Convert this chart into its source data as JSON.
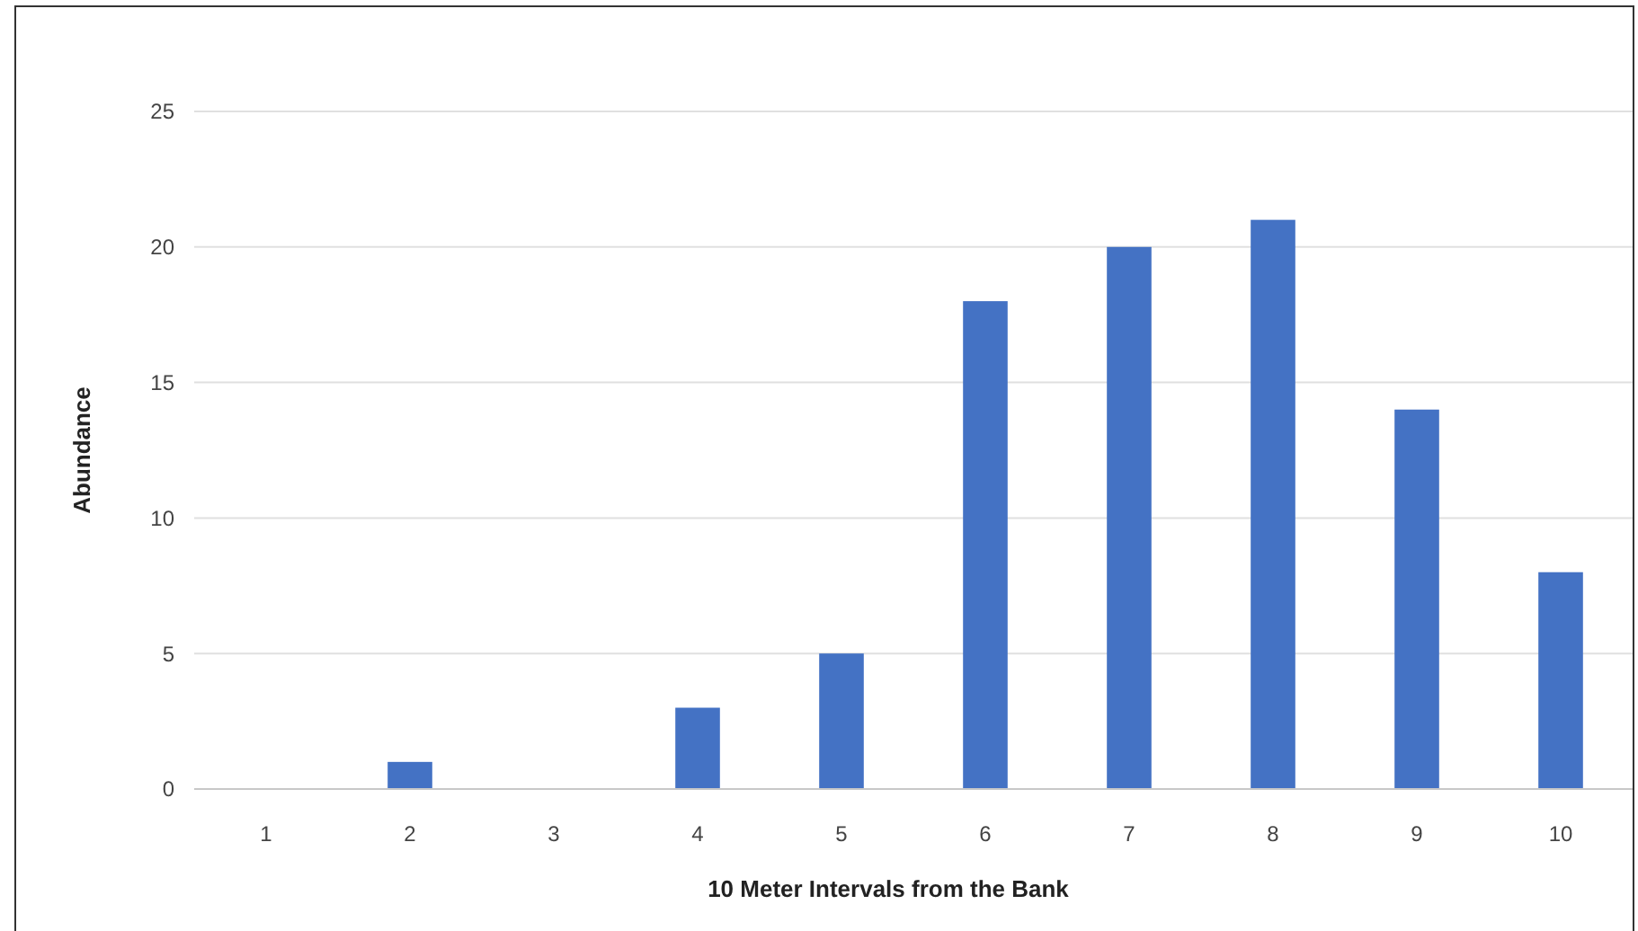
{
  "chart_data": {
    "type": "bar",
    "xlabel": "10 Meter Intervals from the Bank",
    "ylabel": "Abundance",
    "categories": [
      "1",
      "2",
      "3",
      "4",
      "5",
      "6",
      "7",
      "8",
      "9",
      "10"
    ],
    "values": [
      0,
      1,
      0,
      3,
      5,
      18,
      20,
      21,
      14,
      8
    ],
    "color": "#4472c4",
    "ylim": [
      0,
      25
    ],
    "yticks": [
      0,
      5,
      10,
      15,
      20,
      25
    ],
    "grid": "y"
  }
}
